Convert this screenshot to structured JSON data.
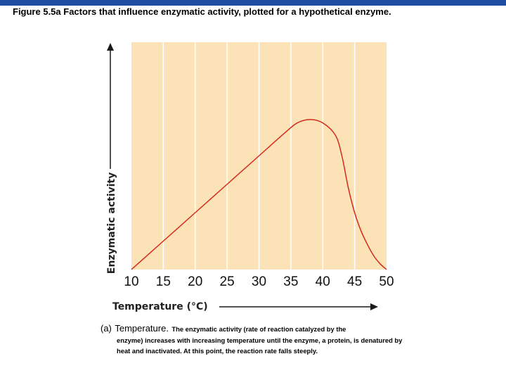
{
  "slide": {
    "title": "Figure 5.5a Factors that influence enzymatic activity, plotted for a hypothetical enzyme.",
    "caption_label": "(a)",
    "caption_heading": "Temperature.",
    "caption_first_line": "The enzymatic activity (rate of reaction catalyzed by the",
    "caption_rest": "enzyme) increases with increasing temperature until the enzyme, a protein, is denatured by heat and inactivated. At this point, the reaction rate falls steeply."
  },
  "colors": {
    "plot_background": "#fbe3b7",
    "gridline": "#ffffff",
    "curve": "#d42a1c",
    "axis": "#1a1a1a",
    "top_bar": "#1f4ea1"
  },
  "chart_data": {
    "type": "line",
    "title": "",
    "xlabel": "Temperature (°C)",
    "ylabel": "Enzymatic activity",
    "x_ticks": [
      "10",
      "15",
      "20",
      "25",
      "30",
      "35",
      "40",
      "45",
      "50"
    ],
    "xlim": [
      10,
      50
    ],
    "ylim": [
      0,
      1
    ],
    "y_units": "relative activity (0 = none, 1 = top of plot area)",
    "grid": "vertical",
    "series": [
      {
        "values": [
          {
            "x": 10,
            "y": 0.0
          },
          {
            "x": 15,
            "y": 0.125
          },
          {
            "x": 20,
            "y": 0.25
          },
          {
            "x": 25,
            "y": 0.375
          },
          {
            "x": 30,
            "y": 0.5
          },
          {
            "x": 34,
            "y": 0.6
          },
          {
            "x": 36,
            "y": 0.645
          },
          {
            "x": 38,
            "y": 0.66
          },
          {
            "x": 40,
            "y": 0.645
          },
          {
            "x": 42,
            "y": 0.59
          },
          {
            "x": 43,
            "y": 0.5
          },
          {
            "x": 44,
            "y": 0.36
          },
          {
            "x": 45,
            "y": 0.25
          },
          {
            "x": 46,
            "y": 0.17
          },
          {
            "x": 47,
            "y": 0.11
          },
          {
            "x": 48,
            "y": 0.06
          },
          {
            "x": 49,
            "y": 0.025
          },
          {
            "x": 50,
            "y": 0.0
          }
        ]
      }
    ]
  }
}
